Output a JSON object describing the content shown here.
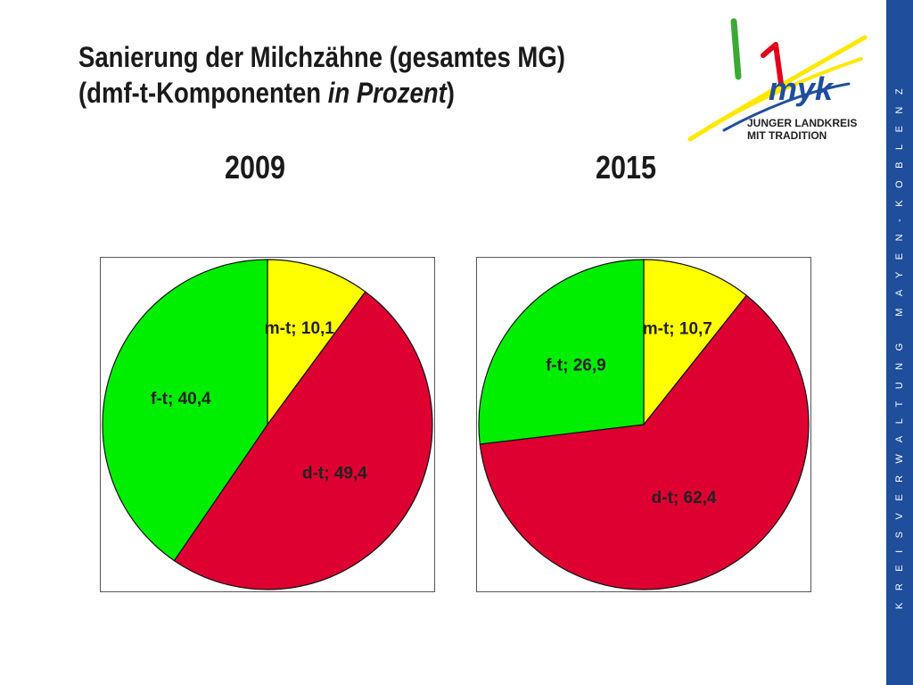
{
  "title": {
    "line1": "Sanierung der Milchzähne (gesamtes MG)",
    "line2_prefix": "(dmf-t-Komponenten ",
    "line2_italic": "in Prozent",
    "line2_suffix": ")"
  },
  "logo": {
    "text_main": "myk",
    "text_line1": "JUNGER LANDKREIS",
    "text_line2": "MIT TRADITION"
  },
  "side_band_text": "KREISVERWALTUNG MAYEN-KOBLENZ",
  "colors": {
    "m-t": "#ffff00",
    "d-t": "#dd0030",
    "f-t": "#00ee00",
    "side_band": "#1f4e9c"
  },
  "chart_data": [
    {
      "type": "pie",
      "title": "2009",
      "slices": [
        {
          "label": "m-t; 10,1",
          "category": "m-t",
          "value": 10.1
        },
        {
          "label": "d-t; 49,4",
          "category": "d-t",
          "value": 49.4
        },
        {
          "label": "f-t; 40,4",
          "category": "f-t",
          "value": 40.4
        }
      ]
    },
    {
      "type": "pie",
      "title": "2015",
      "slices": [
        {
          "label": "m-t; 10,7",
          "category": "m-t",
          "value": 10.7
        },
        {
          "label": "d-t; 62,4",
          "category": "d-t",
          "value": 62.4
        },
        {
          "label": "f-t; 26,9",
          "category": "f-t",
          "value": 26.9
        }
      ]
    }
  ]
}
